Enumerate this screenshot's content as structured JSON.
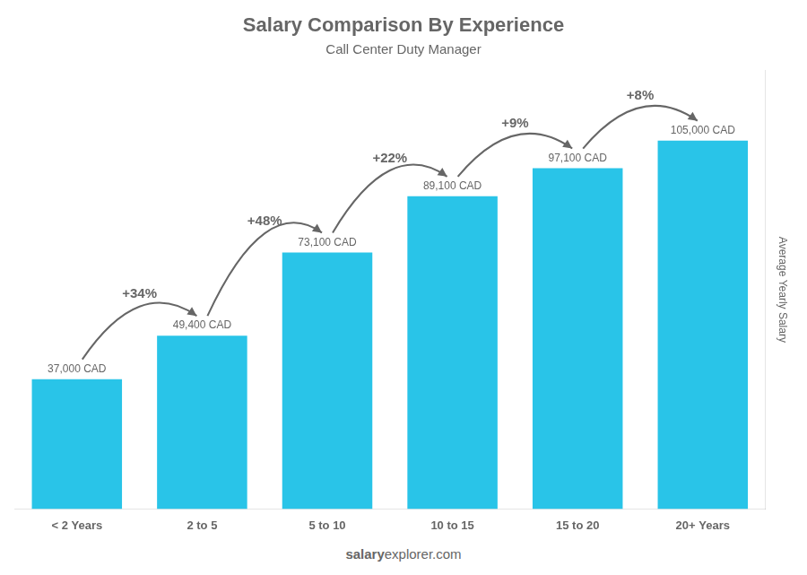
{
  "chart_data": {
    "type": "bar",
    "title": "Salary Comparison By Experience",
    "subtitle": "Call Center Duty Manager",
    "categories": [
      "< 2 Years",
      "2 to 5",
      "5 to 10",
      "10 to 15",
      "15 to 20",
      "20+ Years"
    ],
    "values": [
      37000,
      49400,
      73100,
      89100,
      97100,
      105000
    ],
    "value_labels": [
      "37,000 CAD",
      "49,400 CAD",
      "73,100 CAD",
      "89,100 CAD",
      "97,100 CAD",
      "105,000 CAD"
    ],
    "data_labels": true,
    "color": "#29c4e8",
    "ylim": [
      0,
      125000
    ],
    "y_label": "Average Yearly Salary",
    "tick_labels": "x",
    "grid": false,
    "annotations": [
      "+34%",
      "+48%",
      "+22%",
      "+9%",
      "+8%"
    ],
    "footer": [
      "salary",
      "explorer.com"
    ]
  }
}
